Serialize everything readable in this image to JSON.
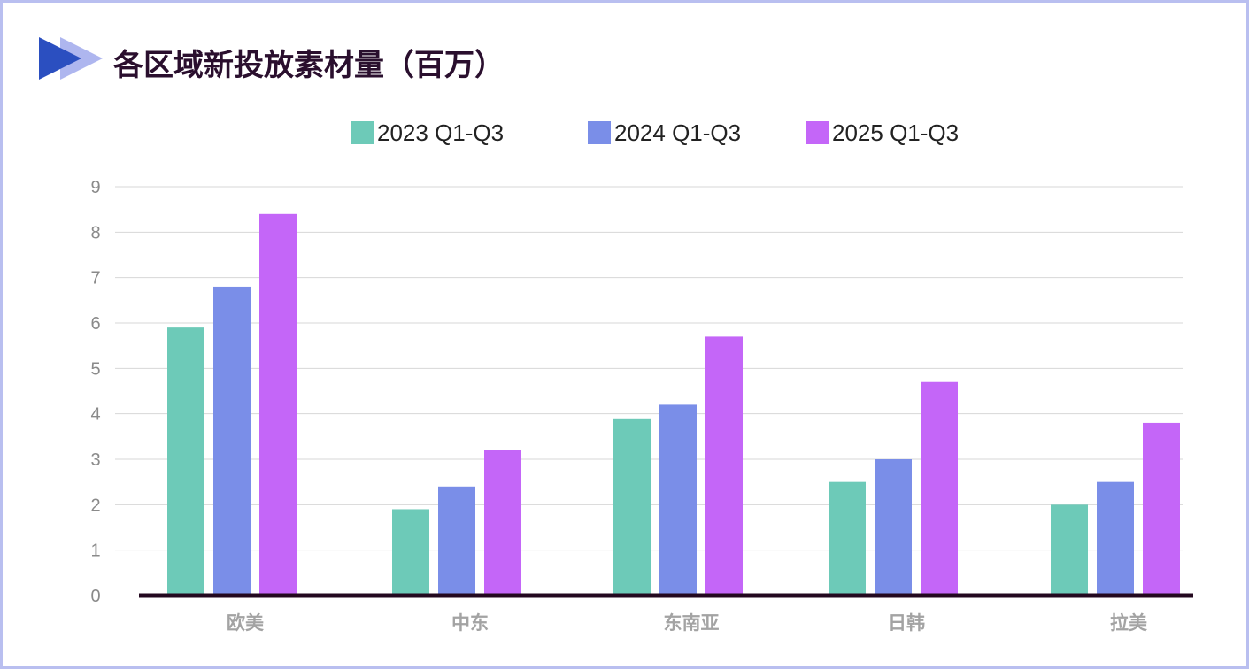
{
  "title": "各区域新投放素材量（百万）",
  "colors": {
    "frame": "#b9bff0",
    "title": "#2a0f2e",
    "icon_dark": "#2b4fc0",
    "icon_light": "#aeb6ef",
    "axis_line": "#23081f",
    "grid": "#d7d7d7"
  },
  "legend": [
    {
      "label": "2023 Q1-Q3",
      "color": "#6dcab8"
    },
    {
      "label": "2024 Q1-Q3",
      "color": "#7a8ee8"
    },
    {
      "label": "2025 Q1-Q3",
      "color": "#c466f8"
    }
  ],
  "chart_data": {
    "type": "bar",
    "title": "各区域新投放素材量（百万）",
    "xlabel": "",
    "ylabel": "",
    "ylim": [
      0,
      9
    ],
    "yticks": [
      "0",
      "1",
      "2",
      "3",
      "4",
      "5",
      "6",
      "7",
      "8",
      "9"
    ],
    "grid": true,
    "legend_position": "top",
    "categories": [
      "欧美",
      "中东",
      "东南亚",
      "日韩",
      "拉美"
    ],
    "series": [
      {
        "name": "2023 Q1-Q3",
        "color": "#6dcab8",
        "values": [
          5.9,
          1.9,
          3.9,
          2.5,
          2.0
        ]
      },
      {
        "name": "2024 Q1-Q3",
        "color": "#7a8ee8",
        "values": [
          6.8,
          2.4,
          4.2,
          3.0,
          2.5
        ]
      },
      {
        "name": "2025 Q1-Q3",
        "color": "#c466f8",
        "values": [
          8.4,
          3.2,
          5.7,
          4.7,
          3.8
        ]
      }
    ]
  }
}
